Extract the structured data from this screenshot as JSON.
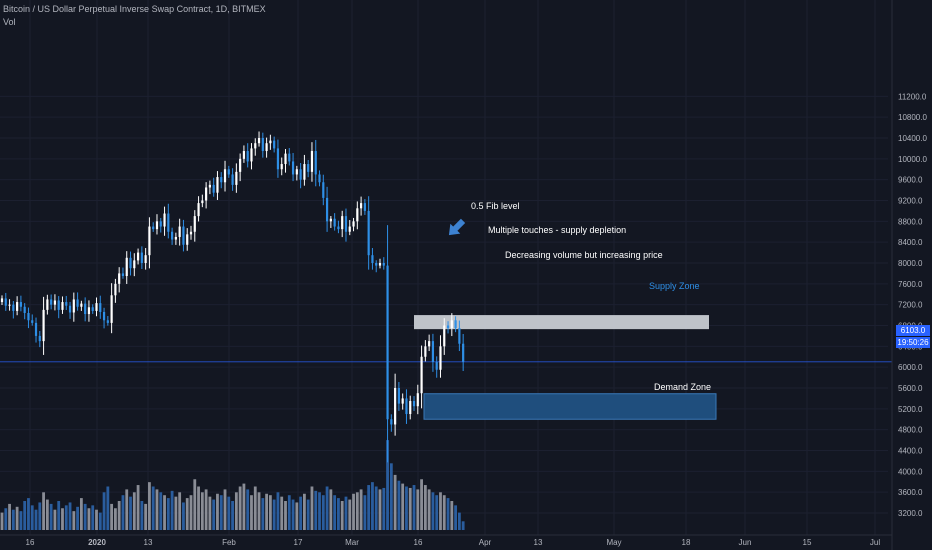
{
  "header": {
    "title": "Bitcoin / US Dollar Perpetual Inverse Swap Contract, 1D, BITMEX",
    "indicator": "Vol"
  },
  "price_scale": {
    "current_price": "6103.0",
    "countdown": "19:50:26"
  },
  "colors": {
    "background": "#131722",
    "up": "#ffffff",
    "down": "#2e8fe6",
    "volume_up": "#8a8d96",
    "volume_down": "#2a5d9e",
    "supply_zone": "#c8ccd3",
    "demand_zone": "#1f4e7d",
    "current_price_line": "#2962ff"
  },
  "chart_data": {
    "type": "candlestick",
    "ylim": [
      3000,
      11400
    ],
    "yticks": [
      3200,
      3600,
      4000,
      4400,
      4800,
      5200,
      5600,
      6000,
      6400,
      6800,
      7200,
      7600,
      8000,
      8400,
      8800,
      9200,
      9600,
      10000,
      10400,
      10800,
      11200
    ],
    "ytick_labels": [
      "3200.0",
      "3600.0",
      "4000.0",
      "4400.0",
      "4800.0",
      "5200.0",
      "5600.0",
      "6000.0",
      "6400.0",
      "6800.0",
      "7200.0",
      "7600.0",
      "8000.0",
      "8400.0",
      "8800.0",
      "9200.0",
      "9600.0",
      "10000.0",
      "10400.0",
      "10800.0",
      "11200.0"
    ],
    "xticks": [
      {
        "label": "16",
        "x": 30
      },
      {
        "label": "2020",
        "x": 97
      },
      {
        "label": "13",
        "x": 148
      },
      {
        "label": "Feb",
        "x": 229
      },
      {
        "label": "17",
        "x": 298
      },
      {
        "label": "Mar",
        "x": 352
      },
      {
        "label": "16",
        "x": 418
      },
      {
        "label": "Apr",
        "x": 485
      },
      {
        "label": "13",
        "x": 538
      },
      {
        "label": "May",
        "x": 614
      },
      {
        "label": "18",
        "x": 686
      },
      {
        "label": "Jun",
        "x": 745
      },
      {
        "label": "15",
        "x": 807
      },
      {
        "label": "Jul",
        "x": 875
      }
    ],
    "series": [
      {
        "name": "Bitcoin / US Dollar Perpetual Inverse Swap Contract",
        "close": [
          7320,
          7180,
          7200,
          7080,
          7250,
          7160,
          7040,
          6900,
          6850,
          6600,
          6500,
          7100,
          7300,
          7200,
          7280,
          7100,
          7250,
          7180,
          7050,
          7300,
          7160,
          7220,
          7020,
          7150,
          7080,
          7230,
          7060,
          6900,
          6850,
          7380,
          7600,
          7800,
          7750,
          8100,
          7900,
          8050,
          8200,
          8000,
          8150,
          8700,
          8650,
          8800,
          8700,
          8950,
          8600,
          8450,
          8500,
          8700,
          8350,
          8550,
          8600,
          8900,
          9150,
          9200,
          9450,
          9500,
          9350,
          9650,
          9550,
          9800,
          9700,
          9500,
          9750,
          10000,
          10150,
          9950,
          10200,
          10300,
          10400,
          10150,
          10300,
          10350,
          10200,
          9800,
          9900,
          10100,
          9950,
          9700,
          9800,
          9600,
          9900,
          9750,
          10150,
          9700,
          9550,
          9250,
          8800,
          8850,
          8700,
          8650,
          8900,
          8600,
          8700,
          8800,
          9050,
          9150,
          9000,
          8150,
          8000,
          7950,
          8000,
          7950,
          5000,
          4900,
          5600,
          5300,
          5400,
          5100,
          5350,
          5250,
          5500,
          6200,
          6400,
          6500,
          6100,
          5950,
          6400,
          6800,
          6750,
          6900,
          6750,
          6450,
          6103
        ]
      },
      {
        "name": "Vol",
        "values": [
          120,
          150,
          180,
          140,
          160,
          130,
          200,
          220,
          170,
          140,
          190,
          260,
          210,
          180,
          140,
          200,
          150,
          170,
          190,
          130,
          160,
          220,
          180,
          150,
          170,
          140,
          120,
          260,
          300,
          180,
          150,
          200,
          240,
          280,
          230,
          260,
          310,
          200,
          180,
          330,
          300,
          280,
          260,
          240,
          220,
          270,
          230,
          260,
          190,
          220,
          240,
          350,
          300,
          260,
          280,
          230,
          210,
          250,
          240,
          280,
          230,
          200,
          260,
          300,
          320,
          280,
          240,
          300,
          260,
          220,
          250,
          240,
          210,
          260,
          230,
          200,
          240,
          210,
          190,
          230,
          250,
          210,
          300,
          270,
          260,
          240,
          300,
          280,
          240,
          220,
          200,
          230,
          210,
          250,
          260,
          280,
          240,
          310,
          330,
          300,
          280,
          290,
          620,
          460,
          380,
          340,
          320,
          300,
          290,
          310,
          280,
          350,
          310,
          280,
          260,
          240,
          260,
          240,
          220,
          200,
          170,
          120,
          60
        ]
      }
    ],
    "annotations": [
      {
        "text": "0.5 Fib level"
      },
      {
        "text": "Multiple touches - supply depletion"
      },
      {
        "text": "Decreasing volume but increasing price"
      },
      {
        "text": "Supply Zone",
        "ylim": [
          6730,
          7000
        ]
      },
      {
        "text": "Demand Zone",
        "ylim": [
          5000,
          5490
        ]
      }
    ]
  }
}
